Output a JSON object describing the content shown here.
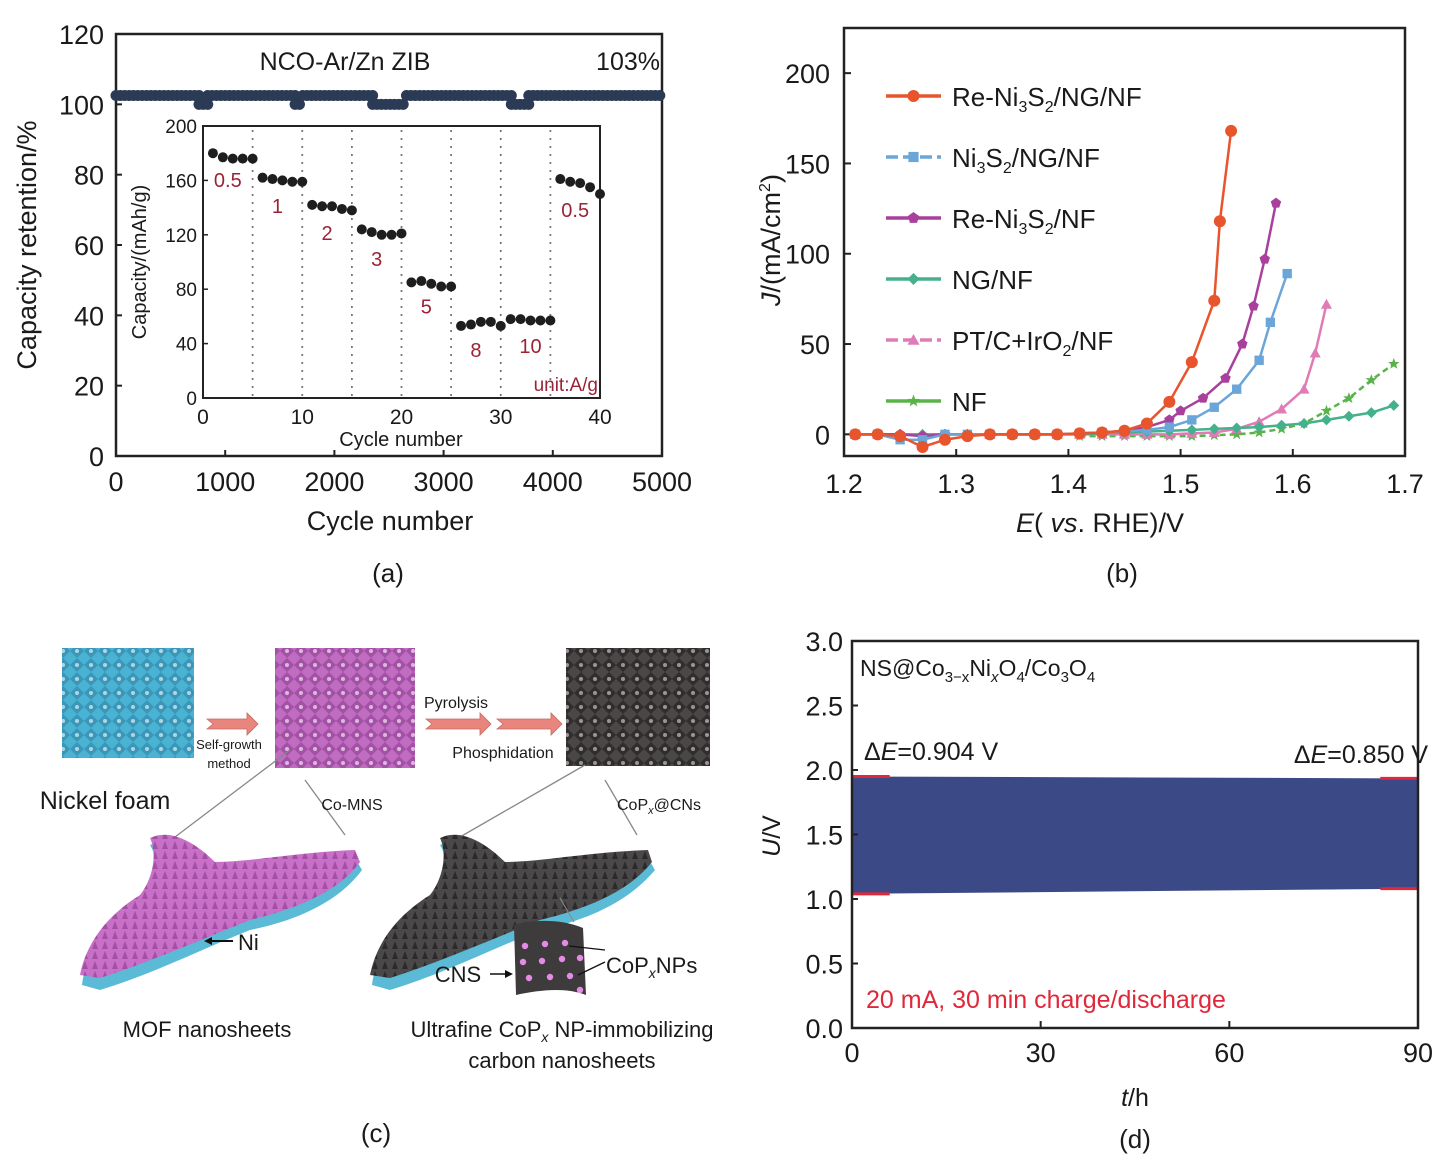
{
  "chart_data": [
    {
      "id": "a",
      "type": "scatter",
      "panel_label": "(a)",
      "title": "NCO-Ar/Zn ZIB",
      "annotation": "103%",
      "xlabel": "Cycle number",
      "ylabel": "Capacity retention/%",
      "xlim": [
        0,
        5000
      ],
      "ylim": [
        0,
        120
      ],
      "xticks": [
        0,
        1000,
        2000,
        3000,
        4000,
        5000
      ],
      "yticks": [
        0,
        20,
        40,
        60,
        80,
        100,
        120
      ],
      "series": [
        {
          "name": "Capacity retention",
          "color": "#2b3a55",
          "segments": [
            {
              "x0": 0,
              "x1": 760,
              "y": 102.5
            },
            {
              "x0": 760,
              "x1": 840,
              "y": 100
            },
            {
              "x0": 840,
              "x1": 1640,
              "y": 102.5
            },
            {
              "x0": 1640,
              "x1": 1710,
              "y": 100
            },
            {
              "x0": 1710,
              "x1": 2350,
              "y": 102.5
            },
            {
              "x0": 2350,
              "x1": 2660,
              "y": 100
            },
            {
              "x0": 2660,
              "x1": 3620,
              "y": 102.5
            },
            {
              "x0": 3620,
              "x1": 3780,
              "y": 100
            },
            {
              "x0": 3780,
              "x1": 5000,
              "y": 102.5
            }
          ]
        }
      ],
      "inset": {
        "type": "scatter",
        "xlabel": "Cycle number",
        "ylabel": "Capacity/(mAh/g)",
        "xlim": [
          0,
          40
        ],
        "ylim": [
          0,
          200
        ],
        "xticks": [
          0,
          10,
          20,
          30,
          40
        ],
        "yticks": [
          0,
          40,
          80,
          120,
          160,
          200
        ],
        "dividers": [
          5,
          10,
          15,
          20,
          25,
          30,
          35
        ],
        "unit_label": "unit:A/g",
        "points": [
          [
            1,
            180
          ],
          [
            2,
            177
          ],
          [
            3,
            176
          ],
          [
            4,
            176
          ],
          [
            5,
            176
          ],
          [
            6,
            162
          ],
          [
            7,
            161
          ],
          [
            8,
            160
          ],
          [
            9,
            159
          ],
          [
            10,
            159
          ],
          [
            11,
            142
          ],
          [
            12,
            141
          ],
          [
            13,
            141
          ],
          [
            14,
            139
          ],
          [
            15,
            138
          ],
          [
            16,
            124
          ],
          [
            17,
            122
          ],
          [
            18,
            120
          ],
          [
            19,
            120
          ],
          [
            20,
            121
          ],
          [
            21,
            85
          ],
          [
            22,
            86
          ],
          [
            23,
            84
          ],
          [
            24,
            82
          ],
          [
            25,
            82
          ],
          [
            26,
            53
          ],
          [
            27,
            54
          ],
          [
            28,
            56
          ],
          [
            29,
            56
          ],
          [
            30,
            53
          ],
          [
            31,
            58
          ],
          [
            32,
            58
          ],
          [
            33,
            57
          ],
          [
            34,
            57
          ],
          [
            35,
            57
          ],
          [
            36,
            161
          ],
          [
            37,
            159
          ],
          [
            38,
            158
          ],
          [
            39,
            155
          ],
          [
            40,
            150
          ]
        ],
        "rate_labels": [
          {
            "text": "0.5",
            "x": 2.5,
            "y": 155
          },
          {
            "text": "1",
            "x": 7.5,
            "y": 136
          },
          {
            "text": "2",
            "x": 12.5,
            "y": 116
          },
          {
            "text": "3",
            "x": 17.5,
            "y": 97
          },
          {
            "text": "5",
            "x": 22.5,
            "y": 62
          },
          {
            "text": "8",
            "x": 27.5,
            "y": 30
          },
          {
            "text": "10",
            "x": 33,
            "y": 33
          },
          {
            "text": "0.5",
            "x": 37.5,
            "y": 133
          }
        ],
        "label_color": "#9b2335",
        "marker_color": "#1e1e1e"
      }
    },
    {
      "id": "b",
      "type": "line",
      "panel_label": "(b)",
      "xlabel_italic": "E",
      "xlabel_italic2": "vs",
      "xlabel_rest": "RHE)/V",
      "ylabel_italic": "J",
      "ylabel_rest": "/(mA/cm",
      "ylabel_sup": "2",
      "xlim": [
        1.2,
        1.7
      ],
      "ylim": [
        -12,
        225
      ],
      "xticks": [
        1.2,
        1.3,
        1.4,
        1.5,
        1.6,
        1.7
      ],
      "yticks": [
        0,
        50,
        100,
        150,
        200
      ],
      "legend": "top-left",
      "series": [
        {
          "name": "Re-Ni3S2/NG/NF",
          "label_parts": [
            "Re-Ni",
            "3",
            "S",
            "2",
            "/NG/NF"
          ],
          "color": "#e8542b",
          "marker": "circle",
          "x": [
            1.21,
            1.23,
            1.25,
            1.27,
            1.29,
            1.31,
            1.33,
            1.35,
            1.37,
            1.39,
            1.41,
            1.43,
            1.45,
            1.47,
            1.49,
            1.51,
            1.53,
            1.535,
            1.545
          ],
          "y": [
            0,
            0,
            -1,
            -7,
            -3,
            -1,
            0,
            0,
            0,
            0,
            0.5,
            1,
            2,
            6,
            18,
            40,
            74,
            118,
            168
          ]
        },
        {
          "name": "Ni3S2/NG/NF",
          "label_parts": [
            "Ni",
            "3",
            "S",
            "2",
            "/NG/NF"
          ],
          "color": "#6aa6d8",
          "marker": "square",
          "x": [
            1.21,
            1.23,
            1.25,
            1.27,
            1.29,
            1.31,
            1.33,
            1.35,
            1.37,
            1.39,
            1.41,
            1.43,
            1.45,
            1.47,
            1.49,
            1.51,
            1.53,
            1.55,
            1.57,
            1.58,
            1.595
          ],
          "y": [
            0,
            0,
            -3,
            -3,
            0,
            0,
            0,
            0,
            0,
            0,
            0.5,
            1,
            1.5,
            2.5,
            4,
            8,
            15,
            25,
            41,
            62,
            89
          ]
        },
        {
          "name": "Re-Ni3S2/NF",
          "label_parts": [
            "Re-Ni",
            "3",
            "S",
            "2",
            "/NF"
          ],
          "color": "#a8409c",
          "marker": "pentagon",
          "x": [
            1.21,
            1.23,
            1.25,
            1.27,
            1.29,
            1.31,
            1.33,
            1.35,
            1.37,
            1.39,
            1.41,
            1.43,
            1.45,
            1.47,
            1.49,
            1.5,
            1.52,
            1.54,
            1.555,
            1.565,
            1.575,
            1.585
          ],
          "y": [
            0,
            0,
            0,
            -1,
            0,
            0,
            0,
            0,
            0,
            0,
            0.5,
            1,
            2,
            4,
            8,
            13,
            20,
            31,
            50,
            71,
            97,
            128
          ]
        },
        {
          "name": "NG/NF",
          "label_parts": [
            "NG/NF"
          ],
          "color": "#45b08c",
          "marker": "diamond",
          "x": [
            1.21,
            1.23,
            1.25,
            1.27,
            1.29,
            1.31,
            1.33,
            1.35,
            1.37,
            1.39,
            1.41,
            1.43,
            1.45,
            1.47,
            1.49,
            1.51,
            1.53,
            1.55,
            1.57,
            1.59,
            1.61,
            1.63,
            1.65,
            1.67,
            1.69
          ],
          "y": [
            0,
            0,
            0,
            0,
            0,
            0,
            0,
            0,
            0,
            0,
            0,
            0.5,
            1,
            1.5,
            2,
            2.5,
            3,
            3.5,
            4,
            5,
            6,
            8,
            10,
            12,
            16
          ]
        },
        {
          "name": "PT/C+IrO2/NF",
          "label_parts": [
            "PT/C+IrO",
            "2",
            "/NF"
          ],
          "color": "#e07bb5",
          "marker": "triangle",
          "x": [
            1.21,
            1.23,
            1.25,
            1.27,
            1.29,
            1.31,
            1.33,
            1.35,
            1.37,
            1.39,
            1.41,
            1.43,
            1.45,
            1.47,
            1.49,
            1.51,
            1.53,
            1.55,
            1.57,
            1.59,
            1.61,
            1.62,
            1.63
          ],
          "y": [
            0,
            0,
            0,
            0,
            0,
            0,
            0,
            0,
            0,
            0,
            0,
            0,
            0,
            0,
            0,
            0.5,
            1,
            3,
            7,
            14,
            25,
            45,
            72
          ]
        },
        {
          "name": "NF",
          "label_parts": [
            "NF"
          ],
          "color": "#5ab348",
          "marker": "star",
          "dashed": true,
          "x": [
            1.41,
            1.43,
            1.45,
            1.47,
            1.49,
            1.51,
            1.53,
            1.55,
            1.57,
            1.59,
            1.61,
            1.63,
            1.65,
            1.67,
            1.69
          ],
          "y": [
            -1,
            -1,
            -1,
            -1,
            -1,
            -1,
            -0.5,
            0,
            1,
            3,
            6,
            13,
            20,
            30,
            39
          ]
        }
      ]
    },
    {
      "id": "d",
      "type": "area",
      "panel_label": "(d)",
      "title_parts": [
        "NS@Co",
        "3−x",
        "Ni",
        "x",
        "O",
        "4",
        "/Co",
        "3",
        "O",
        "4"
      ],
      "xlabel_italic": "t",
      "xlabel_rest": "/h",
      "ylabel_italic": "U",
      "ylabel_rest": "/V",
      "xlim": [
        0,
        90
      ],
      "ylim": [
        0,
        3.0
      ],
      "xticks": [
        0,
        30,
        60,
        90
      ],
      "yticks": [
        "0.0",
        "0.5",
        "1.0",
        "1.5",
        "2.0",
        "2.5",
        "3.0"
      ],
      "fill_color": "#3b4a87",
      "accent_color": "#e0283a",
      "band": {
        "upper_start": 1.95,
        "upper_end": 1.935,
        "lower_start": 1.04,
        "lower_end": 1.08
      },
      "annotations": [
        {
          "prefix": "Δ",
          "italic": "E",
          "text": "=0.904 V",
          "position": "left"
        },
        {
          "prefix": "Δ",
          "italic": "E",
          "text": "=0.850 V",
          "position": "right"
        }
      ],
      "condition_label": "20 mA, 30 min charge/discharge"
    }
  ],
  "schematic_c": {
    "panel_label": "(c)",
    "nickel_foam": "Nickel foam",
    "self_growth": "Self-growth",
    "method": "method",
    "co_mns": "Co-MNS",
    "pyrolysis": "Pyrolysis",
    "phosphidation": "Phosphidation",
    "copx_cns_a": "CoP",
    "copx_cns_b": "x",
    "copx_cns_c": "@CNs",
    "ni_label": "Ni",
    "cns_label": "CNS",
    "copx_nps_a": "CoP",
    "copx_nps_b": "x",
    "copx_nps_c": "NPs",
    "mof_caption": "MOF nanosheets",
    "ultra_caption_a": "Ultrafine CoP",
    "ultra_caption_b": "x",
    "ultra_caption_c": " NP-immobilizing",
    "ultra_caption_d": "carbon nanosheets",
    "colors": {
      "foam": "#4ab3d3",
      "mof": "#b45cb4",
      "carbon": "#3d3b3b",
      "arrow": "#e8857c",
      "substrate": "#5bbad6",
      "np": "#e58ae6"
    }
  }
}
